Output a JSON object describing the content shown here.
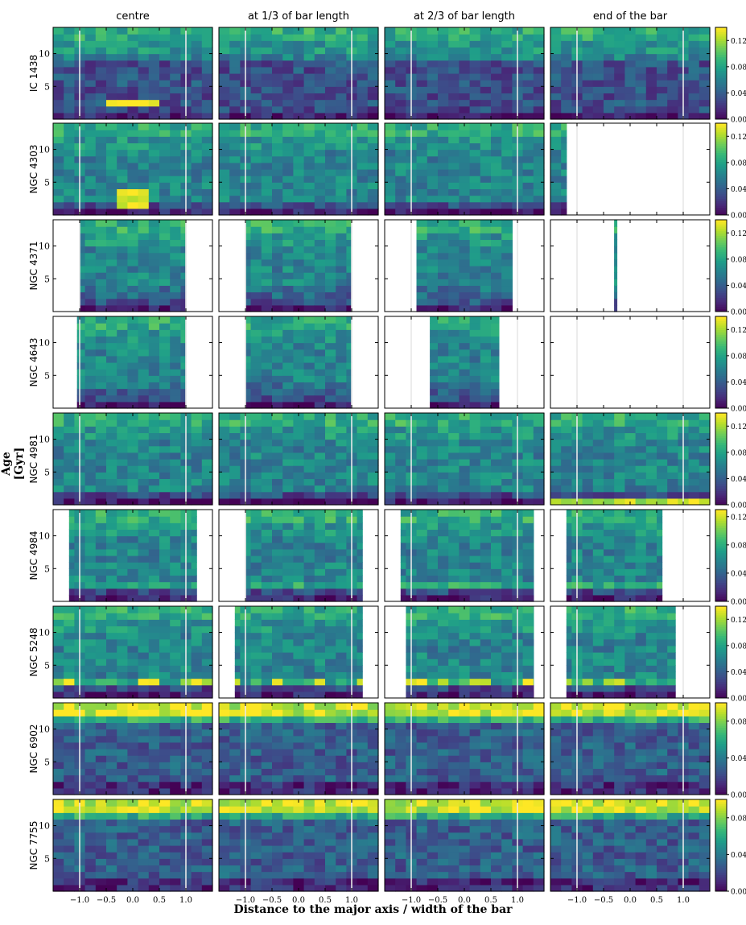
{
  "chart_data": {
    "type": "heatmap",
    "column_titles": [
      "centre",
      "at 1/3 of bar length",
      "at 2/3 of bar length",
      "end of the bar"
    ],
    "galaxies": [
      {
        "name": "IC 1438",
        "colorbar_max": 0.14,
        "colorbar_ticks": [
          "0.00",
          "0.04",
          "0.08",
          "0.12"
        ],
        "coverage": [
          [
            -1.5,
            1.5
          ],
          [
            -1.5,
            1.5
          ],
          [
            -1.5,
            1.5
          ],
          [
            -1.5,
            1.5
          ]
        ]
      },
      {
        "name": "NGC 4303",
        "colorbar_max": 0.14,
        "colorbar_ticks": [
          "0.00",
          "0.04",
          "0.08",
          "0.12"
        ],
        "coverage": [
          [
            -1.5,
            1.5
          ],
          [
            -1.5,
            1.5
          ],
          [
            -1.5,
            1.5
          ],
          [
            -1.5,
            -1.2
          ]
        ]
      },
      {
        "name": "NGC 4371",
        "colorbar_max": 0.14,
        "colorbar_ticks": [
          "0.00",
          "0.04",
          "0.08",
          "0.12"
        ],
        "coverage": [
          [
            -1.0,
            1.0
          ],
          [
            -1.0,
            1.0
          ],
          [
            -0.9,
            0.9
          ],
          [
            -0.3,
            -0.25
          ]
        ]
      },
      {
        "name": "NGC 4643",
        "colorbar_max": 0.14,
        "colorbar_ticks": [
          "0.00",
          "0.04",
          "0.08",
          "0.12"
        ],
        "coverage": [
          [
            -1.05,
            1.0
          ],
          [
            -1.0,
            1.0
          ],
          [
            -0.65,
            0.65
          ],
          null
        ]
      },
      {
        "name": "NGC 4981",
        "colorbar_max": 0.14,
        "colorbar_ticks": [
          "0.00",
          "0.04",
          "0.08",
          "0.12"
        ],
        "coverage": [
          [
            -1.5,
            1.5
          ],
          [
            -1.5,
            1.5
          ],
          [
            -1.5,
            1.5
          ],
          [
            -1.5,
            1.5
          ]
        ]
      },
      {
        "name": "NGC 4984",
        "colorbar_max": 0.13,
        "colorbar_ticks": [
          "0.00",
          "0.04",
          "0.08",
          "0.12"
        ],
        "coverage": [
          [
            -1.2,
            1.2
          ],
          [
            -1.0,
            1.2
          ],
          [
            -1.2,
            1.3
          ],
          [
            -1.2,
            0.6
          ]
        ]
      },
      {
        "name": "NGC 5248",
        "colorbar_max": 0.14,
        "colorbar_ticks": [
          "0.00",
          "0.04",
          "0.08",
          "0.12"
        ],
        "coverage": [
          [
            -1.5,
            1.5
          ],
          [
            -1.2,
            1.2
          ],
          [
            -1.1,
            1.3
          ],
          [
            -1.2,
            0.85
          ]
        ]
      },
      {
        "name": "NGC 6902",
        "colorbar_max": 0.1,
        "colorbar_ticks": [
          "0.00",
          "0.04",
          "0.08"
        ],
        "coverage": [
          [
            -1.5,
            1.5
          ],
          [
            -1.5,
            1.5
          ],
          [
            -1.5,
            1.5
          ],
          [
            -1.5,
            1.5
          ]
        ]
      },
      {
        "name": "NGC 7755",
        "colorbar_max": 0.1,
        "colorbar_ticks": [
          "0.00",
          "0.04",
          "0.08"
        ],
        "coverage": [
          [
            -1.5,
            1.5
          ],
          [
            -1.5,
            1.5
          ],
          [
            -1.5,
            1.5
          ],
          [
            -1.5,
            1.5
          ]
        ]
      }
    ],
    "xlim": [
      -1.5,
      1.5
    ],
    "ylim": [
      0,
      14
    ],
    "x_ticks": [
      "−1.0",
      "−0.5",
      "0.0",
      "0.5",
      "1.0"
    ],
    "y_ticks": [
      "5",
      "10"
    ],
    "reference_lines_x": [
      -1.0,
      1.0
    ],
    "xlabel": "Distance to the major axis / width of the bar",
    "ylabel": "Age [Gyr]",
    "colormap": "viridis"
  }
}
